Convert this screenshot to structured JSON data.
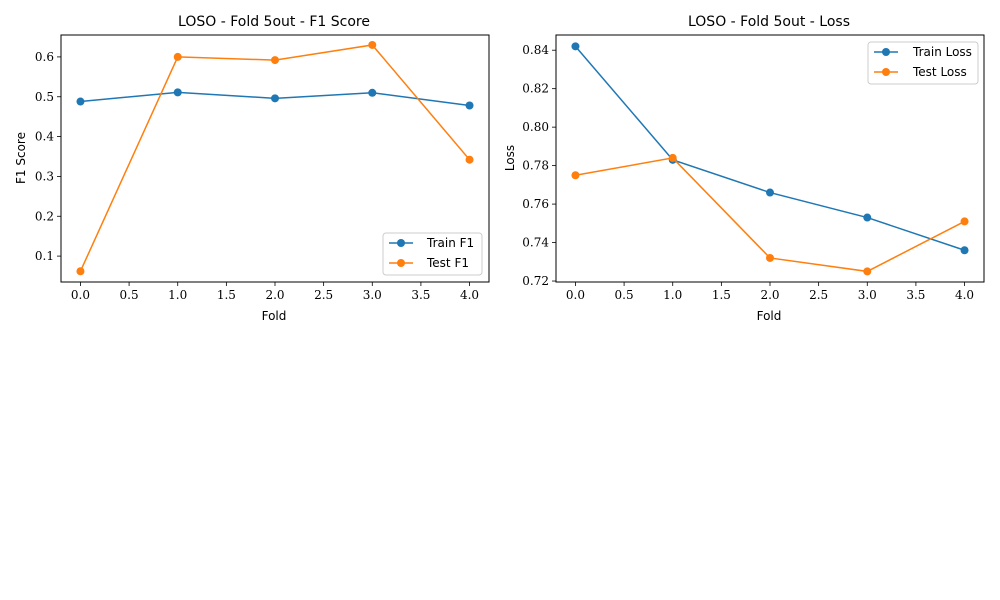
{
  "colors": {
    "train": "#1f77b4",
    "test": "#ff7f0e"
  },
  "chart_data": [
    {
      "type": "line",
      "title": "LOSO - Fold 5out - F1 Score",
      "xlabel": "Fold",
      "ylabel": "F1 Score",
      "x": [
        0,
        1,
        2,
        3,
        4
      ],
      "xlim": [
        -0.2,
        4.2
      ],
      "ylim": [
        0.035,
        0.655
      ],
      "xticks": [
        0.0,
        0.5,
        1.0,
        1.5,
        2.0,
        2.5,
        3.0,
        3.5,
        4.0
      ],
      "xtick_labels": [
        "0.0",
        "0.5",
        "1.0",
        "1.5",
        "2.0",
        "2.5",
        "3.0",
        "3.5",
        "4.0"
      ],
      "yticks": [
        0.1,
        0.2,
        0.3,
        0.4,
        0.5,
        0.6
      ],
      "ytick_labels": [
        "0.1",
        "0.2",
        "0.3",
        "0.4",
        "0.5",
        "0.6"
      ],
      "legend_position": "lower-right",
      "grid": false,
      "series": [
        {
          "name": "Train F1",
          "color_key": "train",
          "values": [
            0.488,
            0.511,
            0.496,
            0.51,
            0.478
          ]
        },
        {
          "name": "Test F1",
          "color_key": "test",
          "values": [
            0.062,
            0.6,
            0.592,
            0.63,
            0.342
          ]
        }
      ]
    },
    {
      "type": "line",
      "title": "LOSO - Fold 5out - Loss",
      "xlabel": "Fold",
      "ylabel": "Loss",
      "x": [
        0,
        1,
        2,
        3,
        4
      ],
      "xlim": [
        -0.2,
        4.2
      ],
      "ylim": [
        0.7195,
        0.8479
      ],
      "xticks": [
        0.0,
        0.5,
        1.0,
        1.5,
        2.0,
        2.5,
        3.0,
        3.5,
        4.0
      ],
      "xtick_labels": [
        "0.0",
        "0.5",
        "1.0",
        "1.5",
        "2.0",
        "2.5",
        "3.0",
        "3.5",
        "4.0"
      ],
      "yticks": [
        0.72,
        0.74,
        0.76,
        0.78,
        0.8,
        0.82,
        0.84
      ],
      "ytick_labels": [
        "0.72",
        "0.74",
        "0.76",
        "0.78",
        "0.80",
        "0.82",
        "0.84"
      ],
      "legend_position": "upper-right",
      "grid": false,
      "series": [
        {
          "name": "Train Loss",
          "color_key": "train",
          "values": [
            0.842,
            0.783,
            0.766,
            0.753,
            0.736
          ]
        },
        {
          "name": "Test Loss",
          "color_key": "test",
          "values": [
            0.775,
            0.784,
            0.732,
            0.725,
            0.751
          ]
        }
      ]
    }
  ]
}
